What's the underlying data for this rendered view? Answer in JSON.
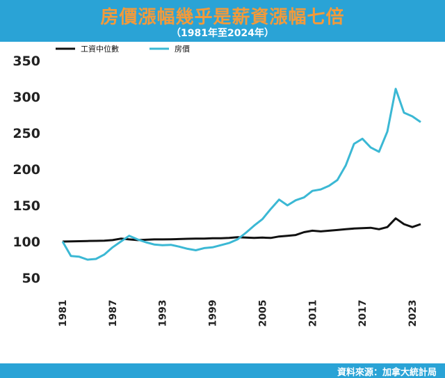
{
  "header": {
    "title": "房價漲幅幾乎是薪資漲幅七倍",
    "subtitle": "（1981年至2024年）"
  },
  "footer": {
    "source": "資料來源：加拿大統計局"
  },
  "colors": {
    "header_bg": "#2aa3d6",
    "title": "#f39a3a",
    "wage": "#111111",
    "house": "#3bb8d4"
  },
  "chart_data": {
    "type": "line",
    "title": "房價漲幅幾乎是薪資漲幅七倍",
    "subtitle": "（1981年至2024年）",
    "x": [
      1981,
      1982,
      1983,
      1984,
      1985,
      1986,
      1987,
      1988,
      1989,
      1990,
      1991,
      1992,
      1993,
      1994,
      1995,
      1996,
      1997,
      1998,
      1999,
      2000,
      2001,
      2002,
      2003,
      2004,
      2005,
      2006,
      2007,
      2008,
      2009,
      2010,
      2011,
      2012,
      2013,
      2014,
      2015,
      2016,
      2017,
      2018,
      2019,
      2020,
      2021,
      2022,
      2023,
      2024
    ],
    "x_ticks": [
      "1981",
      "1987",
      "1993",
      "1999",
      "2005",
      "2011",
      "2017",
      "2023"
    ],
    "y_ticks": [
      "50",
      "100",
      "150",
      "200",
      "250",
      "300",
      "350"
    ],
    "ylim": [
      50,
      350
    ],
    "series": [
      {
        "name": "工資中位數",
        "color": "#111111",
        "values": [
          100,
          100.3,
          100.5,
          100.8,
          101,
          101.2,
          102,
          104,
          103,
          102,
          102.5,
          103,
          103,
          103.2,
          103.5,
          103.8,
          104,
          104,
          104.5,
          104.5,
          105,
          106,
          105.5,
          105,
          105.5,
          105,
          107,
          108,
          109,
          113,
          115,
          114,
          115,
          116,
          117,
          118,
          118.5,
          119,
          117,
          120,
          132,
          124,
          120,
          124
        ]
      },
      {
        "name": "房價",
        "color": "#3bb8d4",
        "values": [
          100,
          80,
          79,
          75,
          76,
          82,
          92,
          100,
          108,
          103,
          99,
          96,
          95,
          95.5,
          93,
          90,
          88,
          91,
          92,
          95,
          98,
          103,
          112,
          122,
          131,
          145,
          158,
          150,
          157,
          161,
          170,
          172,
          177,
          185,
          205,
          235,
          242,
          230,
          224,
          252,
          311,
          278,
          273,
          265
        ]
      }
    ],
    "legend": {
      "position": "top-left",
      "entries": [
        "工資中位數",
        "房價"
      ]
    },
    "grid": false
  }
}
